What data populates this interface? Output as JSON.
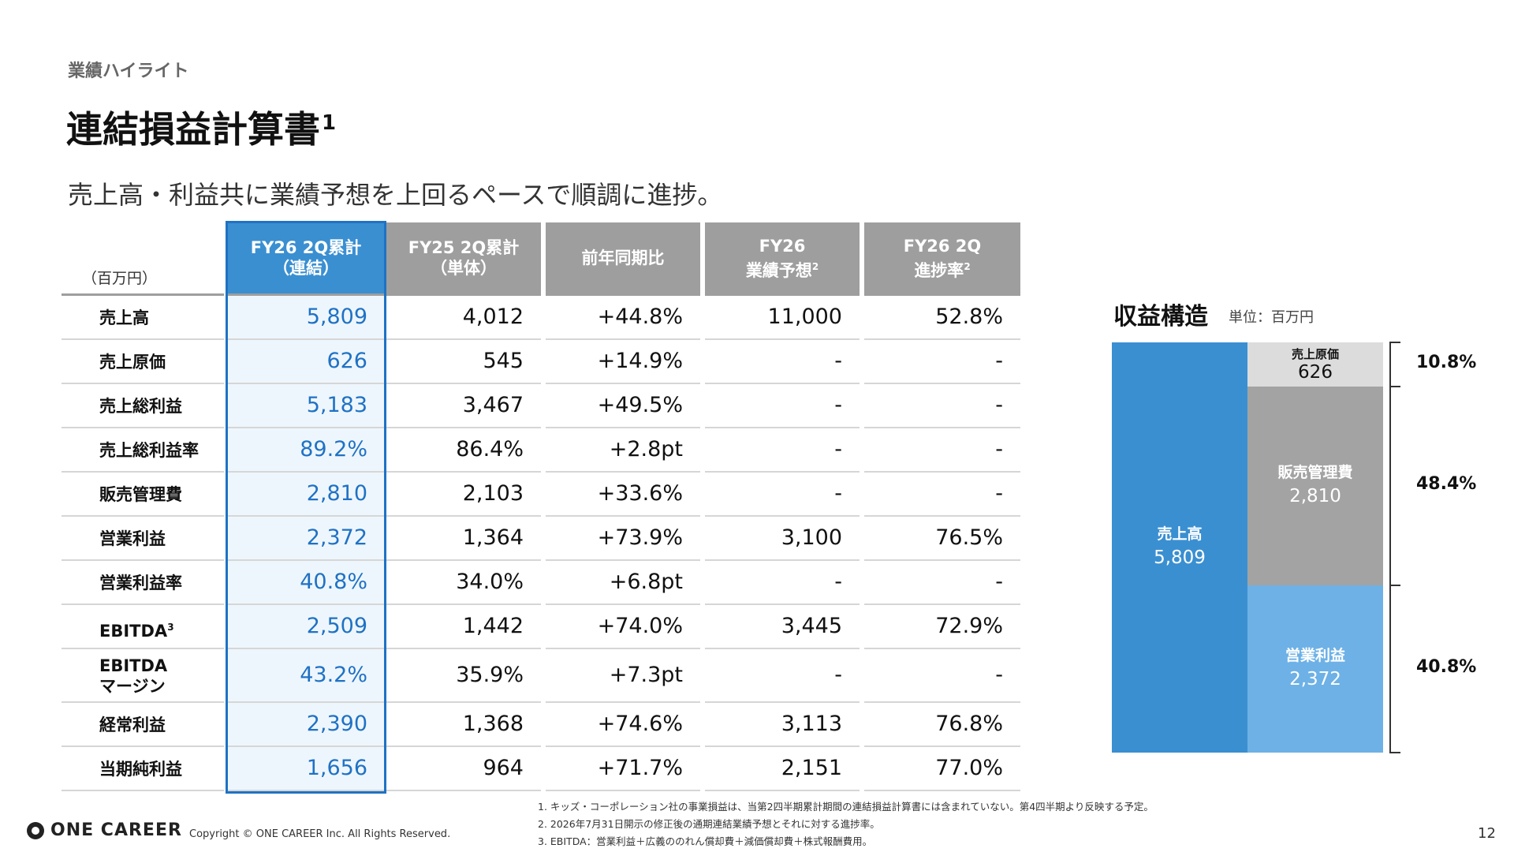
{
  "header": {
    "section": "業績ハイライト",
    "title": "連結損益計算書",
    "title_sup": "1",
    "subtitle": "売上高・利益共に業績予想を上回るペースで順調に進捗。"
  },
  "table": {
    "unit": "（百万円）",
    "columns": [
      {
        "line1": "FY26 2Q累計",
        "line2": "（連結）",
        "sup": ""
      },
      {
        "line1": "FY25 2Q累計",
        "line2": "（単体）",
        "sup": ""
      },
      {
        "line1": "前年同期比",
        "line2": "",
        "sup": ""
      },
      {
        "line1": "FY26",
        "line2": "業績予想",
        "sup": "2"
      },
      {
        "line1": "FY26 2Q",
        "line2": "進捗率",
        "sup": "2"
      }
    ],
    "rows": [
      {
        "label": "売上高",
        "sup": "",
        "values": [
          "5,809",
          "4,012",
          "+44.8%",
          "11,000",
          "52.8%"
        ]
      },
      {
        "label": "売上原価",
        "sup": "",
        "values": [
          "626",
          "545",
          "+14.9%",
          "-",
          "-"
        ]
      },
      {
        "label": "売上総利益",
        "sup": "",
        "values": [
          "5,183",
          "3,467",
          "+49.5%",
          "-",
          "-"
        ]
      },
      {
        "label": "売上総利益率",
        "sup": "",
        "values": [
          "89.2%",
          "86.4%",
          "+2.8pt",
          "-",
          "-"
        ]
      },
      {
        "label": "販売管理費",
        "sup": "",
        "values": [
          "2,810",
          "2,103",
          "+33.6%",
          "-",
          "-"
        ]
      },
      {
        "label": "営業利益",
        "sup": "",
        "values": [
          "2,372",
          "1,364",
          "+73.9%",
          "3,100",
          "76.5%"
        ]
      },
      {
        "label": "営業利益率",
        "sup": "",
        "values": [
          "40.8%",
          "34.0%",
          "+6.8pt",
          "-",
          "-"
        ]
      },
      {
        "label": "EBITDA",
        "sup": "3",
        "values": [
          "2,509",
          "1,442",
          "+74.0%",
          "3,445",
          "72.9%"
        ]
      },
      {
        "label": "EBITDA\nマージン",
        "sup": "",
        "values": [
          "43.2%",
          "35.9%",
          "+7.3pt",
          "-",
          "-"
        ]
      },
      {
        "label": "経常利益",
        "sup": "",
        "values": [
          "2,390",
          "1,368",
          "+74.6%",
          "3,113",
          "76.8%"
        ]
      },
      {
        "label": "当期純利益",
        "sup": "",
        "values": [
          "1,656",
          "964",
          "+71.7%",
          "2,151",
          "77.0%"
        ]
      }
    ]
  },
  "revenue_structure": {
    "title": "収益構造",
    "unit": "単位：百万円",
    "revenue": {
      "label": "売上高",
      "value": "5,809",
      "color": "#3a8fd1"
    },
    "segments": [
      {
        "label": "売上原価",
        "value": "626",
        "pct": "10.8%",
        "share": 10.8,
        "color": "#dcdcdc"
      },
      {
        "label": "販売管理費",
        "value": "2,810",
        "pct": "48.4%",
        "share": 48.4,
        "color": "#a3a3a3"
      },
      {
        "label": "営業利益",
        "value": "2,372",
        "pct": "40.8%",
        "share": 40.8,
        "color": "#6db1e6"
      }
    ]
  },
  "footer": {
    "logo_text": "ONE CAREER",
    "copyright": "Copyright © ONE CAREER Inc. All Rights Reserved.",
    "notes": [
      "1. キッズ・コーポレーション社の事業損益は、当第2四半期累計期間の連結損益計算書には含まれていない。第4四半期より反映する予定。",
      "2. 2026年7月31日開示の修正後の通期連結業績予想とそれに対する進捗率。",
      "3. EBITDA：営業利益＋広義ののれん償却費＋減価償却費＋株式報酬費用。"
    ],
    "page": "12"
  }
}
